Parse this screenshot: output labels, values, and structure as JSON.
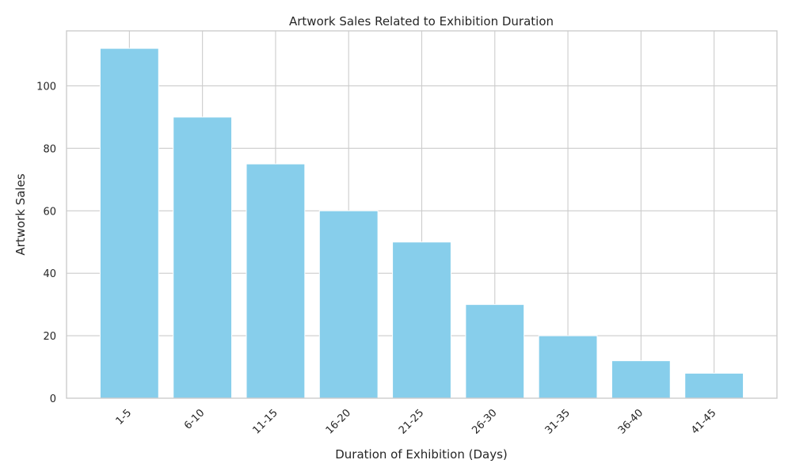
{
  "chart_data": {
    "type": "bar",
    "title": "Artwork Sales Related to Exhibition Duration",
    "xlabel": "Duration of Exhibition (Days)",
    "ylabel": "Artwork Sales",
    "categories": [
      "1-5",
      "6-10",
      "11-15",
      "16-20",
      "21-25",
      "26-30",
      "31-35",
      "36-40",
      "41-45"
    ],
    "values": [
      112,
      90,
      75,
      60,
      50,
      30,
      20,
      12,
      8
    ],
    "ylim": [
      0,
      117.6
    ],
    "yticks": [
      0,
      20,
      40,
      60,
      80,
      100
    ],
    "bar_color": "#87CEEB",
    "grid": true,
    "legend": "none"
  }
}
